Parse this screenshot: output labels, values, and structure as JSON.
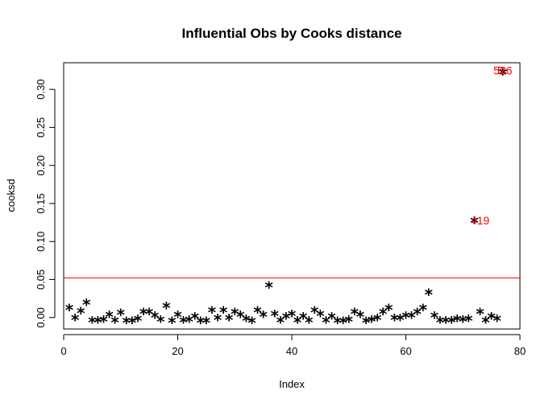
{
  "chart_data": {
    "type": "scatter",
    "title": "Influential Obs by Cooks distance",
    "xlabel": "Index",
    "ylabel": "cooksd",
    "xlim": [
      0,
      80
    ],
    "ylim": [
      -0.015,
      0.335
    ],
    "xticks": [
      0,
      20,
      40,
      60,
      80
    ],
    "xtick_labels": [
      "0",
      "20",
      "40",
      "60",
      "80"
    ],
    "yticks": [
      0.0,
      0.05,
      0.1,
      0.15,
      0.2,
      0.25,
      0.3
    ],
    "ytick_labels": [
      "0.00",
      "0.05",
      "0.10",
      "0.15",
      "0.20",
      "0.25",
      "0.30"
    ],
    "grid": false,
    "point_marker": "*",
    "point_color": "#000000",
    "cutoff_line": {
      "y": 0.052,
      "color": "#ff0000"
    },
    "series": [
      {
        "x": [
          1,
          2,
          3,
          4,
          5,
          6,
          7,
          8,
          9,
          10,
          11,
          12,
          13,
          14,
          15,
          16,
          17,
          18,
          19,
          20,
          21,
          22,
          23,
          24,
          25,
          26,
          27,
          28,
          29,
          30,
          31,
          32,
          33,
          34,
          35,
          36,
          37,
          38,
          39,
          40,
          41,
          42,
          43,
          44,
          45,
          46,
          47,
          48,
          49,
          50,
          51,
          52,
          53,
          54,
          55,
          56,
          57,
          58,
          59,
          60,
          61,
          62,
          63,
          64,
          65,
          66,
          67,
          68,
          69,
          70,
          71,
          72,
          73,
          74,
          75,
          76,
          77
        ],
        "y": [
          0.015,
          0.002,
          0.011,
          0.022,
          -0.001,
          -0.001,
          0.0,
          0.006,
          -0.001,
          0.009,
          -0.002,
          -0.002,
          0.001,
          0.01,
          0.01,
          0.005,
          0.0,
          0.018,
          -0.002,
          0.006,
          -0.001,
          0.0,
          0.004,
          -0.002,
          -0.002,
          0.012,
          0.002,
          0.012,
          0.002,
          0.01,
          0.006,
          0.001,
          -0.002,
          0.012,
          0.006,
          0.045,
          0.007,
          -0.001,
          0.004,
          0.007,
          -0.001,
          0.004,
          -0.001,
          0.012,
          0.007,
          -0.001,
          0.004,
          -0.002,
          -0.002,
          0.0,
          0.01,
          0.006,
          -0.002,
          0.0,
          0.002,
          0.01,
          0.015,
          0.002,
          0.002,
          0.005,
          0.005,
          0.01,
          0.015,
          0.035,
          0.005,
          -0.001,
          -0.001,
          -0.001,
          0.001,
          0.0,
          0.001,
          0.13,
          0.01,
          -0.001,
          0.004,
          0.001,
          0.325
        ]
      }
    ],
    "annotations": [
      {
        "x": 73,
        "y": 0.128,
        "text": "419",
        "color": "#ff0000"
      },
      {
        "x": 77,
        "y": 0.325,
        "text": "526",
        "color": "#ff0000"
      },
      {
        "x": 76.6,
        "y": 0.325,
        "text": "5",
        "color": "#ff0000"
      }
    ]
  }
}
